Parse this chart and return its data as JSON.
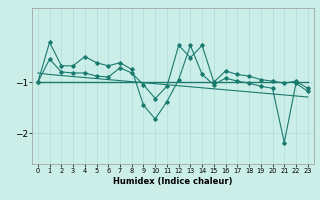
{
  "title": "",
  "xlabel": "Humidex (Indice chaleur)",
  "bg_color": "#cceee8",
  "line_color": "#1a7a6e",
  "grid_color": "#aadddd",
  "yticks": [
    -2,
    -1
  ],
  "ylim": [
    -2.6,
    0.45
  ],
  "xlim": [
    -0.5,
    23.5
  ],
  "xticks": [
    0,
    1,
    2,
    3,
    4,
    5,
    6,
    7,
    8,
    9,
    10,
    11,
    12,
    13,
    14,
    15,
    16,
    17,
    18,
    19,
    20,
    21,
    22,
    23
  ],
  "series1": [
    -1.0,
    -0.22,
    -0.68,
    -0.68,
    -0.5,
    -0.62,
    -0.68,
    -0.62,
    -0.75,
    -1.45,
    -1.72,
    -1.38,
    -0.95,
    -0.28,
    -0.85,
    -1.05,
    -0.92,
    -0.98,
    -1.02,
    -1.08,
    -1.12,
    -2.18,
    -1.02,
    -1.18
  ],
  "series2": [
    -1.0,
    -0.55,
    -0.8,
    -0.82,
    -0.82,
    -0.88,
    -0.9,
    -0.72,
    -0.82,
    -1.05,
    -1.32,
    -1.08,
    -0.28,
    -0.52,
    -0.28,
    -1.0,
    -0.78,
    -0.85,
    -0.88,
    -0.95,
    -0.98,
    -1.02,
    -0.98,
    -1.12
  ],
  "series3_flat": [
    -1.0,
    -1.0,
    -1.0,
    -1.0,
    -1.0,
    -1.0,
    -1.0,
    -1.0,
    -1.0,
    -1.0,
    -1.0,
    -1.0,
    -1.0,
    -1.0,
    -1.0,
    -1.0,
    -1.0,
    -1.0,
    -1.0,
    -1.0,
    -1.0,
    -1.0,
    -1.0,
    -1.0
  ],
  "series4_trend": [
    -0.82,
    -0.85,
    -0.87,
    -0.89,
    -0.91,
    -0.93,
    -0.95,
    -0.97,
    -0.99,
    -1.01,
    -1.03,
    -1.05,
    -1.07,
    -1.09,
    -1.11,
    -1.13,
    -1.15,
    -1.17,
    -1.19,
    -1.21,
    -1.23,
    -1.25,
    -1.27,
    -1.29
  ]
}
